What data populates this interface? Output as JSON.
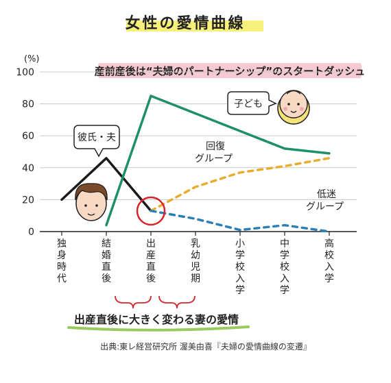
{
  "chart_data": {
    "type": "line",
    "title": "女性の愛情曲線",
    "banner": "産前産後は“夫婦のパートナーシップ”のスタートダッシュ",
    "y_unit": "(%)",
    "ylim": [
      0,
      100
    ],
    "yticks": [
      "0",
      "20",
      "40",
      "60",
      "80",
      "100"
    ],
    "categories": [
      "独身時代",
      "結婚直後",
      "出産直後",
      "乳幼児期",
      "小学校入学",
      "中学校入学",
      "高校入学"
    ],
    "series": [
      {
        "name": "彼氏・夫",
        "color": "#1a1a1a",
        "style": "solid",
        "points": [
          [
            0,
            20
          ],
          [
            1,
            46
          ],
          [
            2,
            13
          ]
        ]
      },
      {
        "name": "子ども",
        "color": "#1f8f6a",
        "style": "solid",
        "points": [
          [
            1,
            4
          ],
          [
            2,
            85
          ],
          [
            4,
            63
          ],
          [
            5,
            52
          ],
          [
            6,
            49
          ]
        ]
      },
      {
        "name": "回復グループ",
        "color": "#e6ad2e",
        "style": "dashed",
        "points": [
          [
            2,
            13
          ],
          [
            3,
            28
          ],
          [
            4,
            37
          ],
          [
            5,
            41
          ],
          [
            6,
            46
          ]
        ]
      },
      {
        "name": "低迷グループ",
        "color": "#2a7fb5",
        "style": "dashed",
        "points": [
          [
            2,
            13
          ],
          [
            3,
            8
          ],
          [
            4,
            1
          ],
          [
            5,
            4
          ],
          [
            6,
            0
          ]
        ]
      }
    ],
    "labels": {
      "partner": "彼氏・夫",
      "child": "子ども",
      "recovery": "回復\nグループ",
      "low": "低迷\nグループ"
    },
    "annotation": "出産直後に大きく変わる妻の愛情",
    "source": "出典:東レ経営研究所 渥美由喜『夫婦の愛情曲線の変遷』",
    "colors": {
      "highlight": "#f7f07a",
      "banner": "#f6c9d3",
      "circle": "#d8232a",
      "bracket": "#d8232a",
      "annotation_underline": "#98ca5e"
    }
  }
}
